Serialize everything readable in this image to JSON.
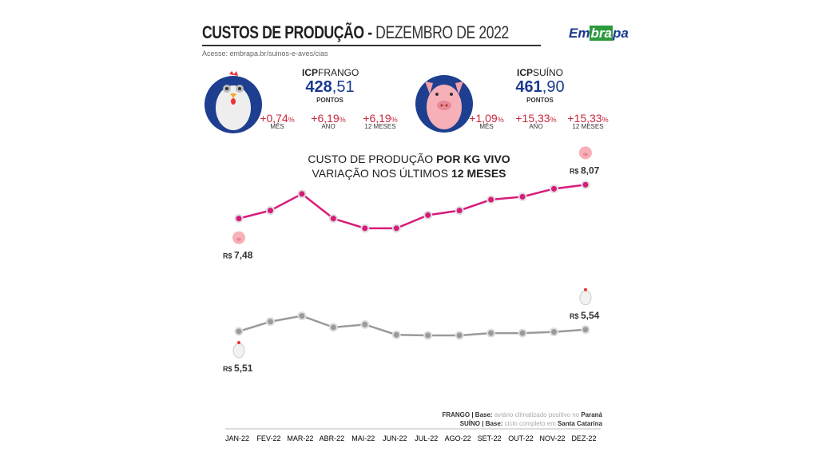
{
  "header": {
    "title_bold": "CUSTOS DE PRODUÇÃO -",
    "title_light": "DEZEMBRO DE 2022",
    "access": "Acesse: embrapa.br/suinos-e-aves/cias",
    "logo": {
      "pre": "Em",
      "mid": "bra",
      "post": "pa"
    }
  },
  "icp": [
    {
      "name_bold": "ICP",
      "name": "FRANGO",
      "int": "428",
      "dec": ",51",
      "unit": "PONTOS",
      "stats": [
        {
          "v": "+0,74",
          "pct": "%",
          "label": "MÊS"
        },
        {
          "v": "+6,19",
          "pct": "%",
          "label": "ANO"
        },
        {
          "v": "+6,19",
          "pct": "%",
          "label": "12 MESES"
        }
      ]
    },
    {
      "name_bold": "ICP",
      "name": "SUÍNO",
      "int": "461",
      "dec": ",90",
      "unit": "PONTOS",
      "stats": [
        {
          "v": "+1,09",
          "pct": "%",
          "label": "MÊS"
        },
        {
          "v": "+15,33",
          "pct": "%",
          "label": "ANO"
        },
        {
          "v": "+15,33",
          "pct": "%",
          "label": "12 MESES"
        }
      ]
    }
  ],
  "colors": {
    "pig": "#d81b7a",
    "chicken": "#9a9a9a",
    "accent": "#1a3a8f",
    "stat": "#c8283c"
  },
  "chart_data": {
    "type": "line",
    "title_line1_light": "CUSTO DE PRODUÇÃO ",
    "title_line1_bold": "POR KG VIVO",
    "title_line2_light": "VARIAÇÃO NOS ÚLTIMOS ",
    "title_line2_bold": "12 MESES",
    "categories": [
      "JAN-22",
      "FEV-22",
      "MAR-22",
      "ABR-22",
      "MAI-22",
      "JUN-22",
      "JUL-22",
      "AGO-22",
      "SET-22",
      "OUT-22",
      "NOV-22",
      "DEZ-22"
    ],
    "ylim": [
      5.3,
      8.2
    ],
    "grid": false,
    "series": [
      {
        "key": "pig",
        "values": [
          7.48,
          7.62,
          7.91,
          7.48,
          7.31,
          7.31,
          7.54,
          7.62,
          7.81,
          7.86,
          8.0,
          8.07
        ],
        "start_label": "7,48",
        "end_label": "8,07"
      },
      {
        "key": "chicken",
        "values": [
          5.51,
          5.68,
          5.78,
          5.58,
          5.63,
          5.45,
          5.44,
          5.44,
          5.48,
          5.48,
          5.5,
          5.54
        ],
        "start_label": "5,51",
        "end_label": "5,54"
      }
    ],
    "currency": "R$"
  },
  "notes": [
    {
      "b": "FRANGO | Base:",
      "g": " aviário climatizado positivo no ",
      "e": "Paraná"
    },
    {
      "b": "SUÍNO | Base:",
      "g": " ciclo completo em ",
      "e": "Santa Catarina"
    }
  ]
}
